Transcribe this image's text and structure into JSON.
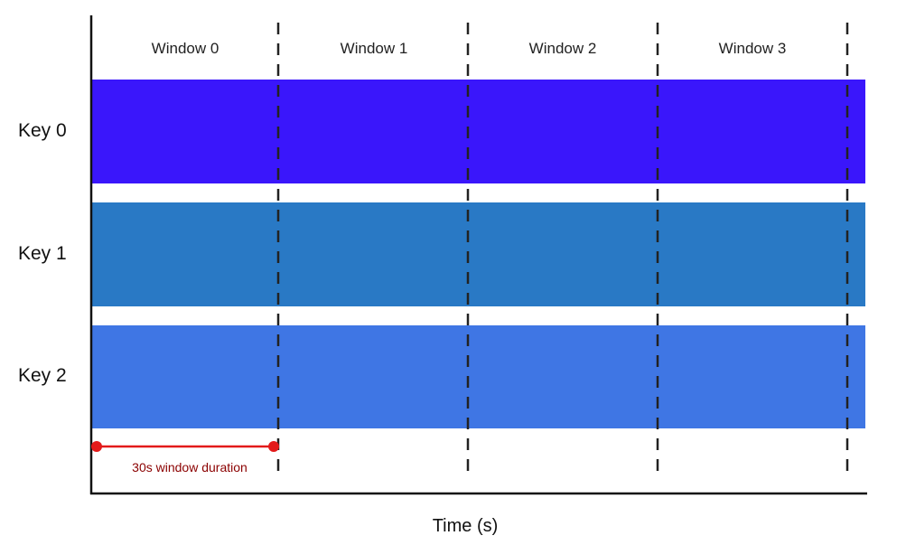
{
  "windows": [
    {
      "label": "Window 0"
    },
    {
      "label": "Window 1"
    },
    {
      "label": "Window 2"
    },
    {
      "label": "Window 3"
    }
  ],
  "keys": [
    {
      "label": "Key 0",
      "color": "#3a16fb"
    },
    {
      "label": "Key 1",
      "color": "#2979c5"
    },
    {
      "label": "Key 2",
      "color": "#3f76e4"
    }
  ],
  "axis": {
    "x_label": "Time (s)"
  },
  "duration_marker": {
    "label": "30s window duration",
    "color": "#e31a1a"
  }
}
